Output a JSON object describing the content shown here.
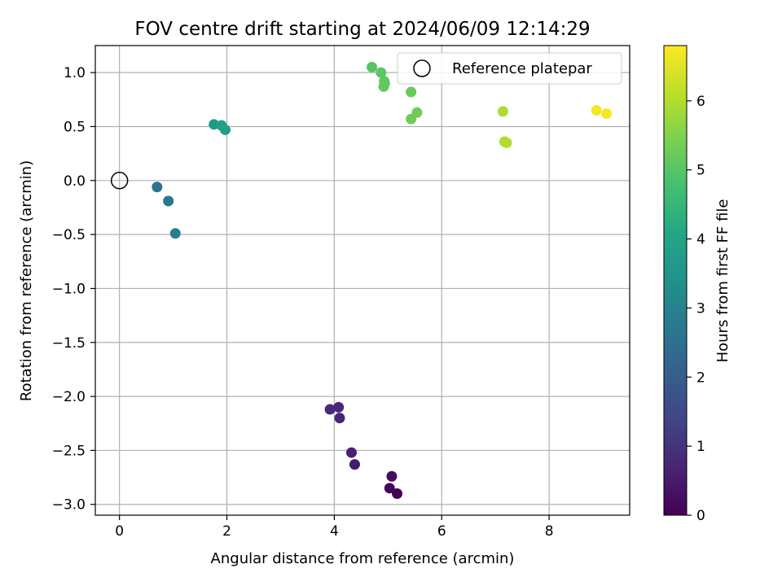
{
  "chart_data": {
    "type": "scatter",
    "title": "FOV centre drift starting at 2024/06/09 12:14:29",
    "xlabel": "Angular distance from reference (arcmin)",
    "ylabel": "Rotation from reference (arcmin)",
    "xlim": [
      -0.45,
      9.5
    ],
    "ylim": [
      -3.1,
      1.25
    ],
    "xticks": [
      0,
      2,
      4,
      6,
      8
    ],
    "yticks": [
      1.0,
      0.5,
      0.0,
      -0.5,
      -1.0,
      -1.5,
      -2.0,
      -2.5,
      -3.0
    ],
    "xtick_labels": [
      "0",
      "2",
      "4",
      "6",
      "8"
    ],
    "ytick_labels": [
      "1.0",
      "0.5",
      "0.0",
      "−0.5",
      "−1.0",
      "−1.5",
      "−2.0",
      "−2.5",
      "−3.0"
    ],
    "grid": true,
    "legend": {
      "location": "top-right",
      "label": "Reference platepar"
    },
    "reference_point": {
      "x": 0.0,
      "y": 0.0
    },
    "colorbar": {
      "label": "Hours from first FF file",
      "colormap": "viridis",
      "range": [
        0,
        6.8
      ],
      "ticks": [
        0,
        1,
        2,
        3,
        4,
        5,
        6
      ],
      "tick_labels": [
        "0",
        "1",
        "2",
        "3",
        "4",
        "5",
        "6"
      ]
    },
    "points": [
      {
        "x": 5.17,
        "y": -2.9,
        "hours": 0.0
      },
      {
        "x": 5.03,
        "y": -2.85,
        "hours": 0.1
      },
      {
        "x": 5.07,
        "y": -2.74,
        "hours": 0.2
      },
      {
        "x": 4.38,
        "y": -2.63,
        "hours": 0.5
      },
      {
        "x": 4.32,
        "y": -2.52,
        "hours": 0.6
      },
      {
        "x": 4.1,
        "y": -2.2,
        "hours": 0.7
      },
      {
        "x": 4.08,
        "y": -2.1,
        "hours": 0.75
      },
      {
        "x": 3.92,
        "y": -2.12,
        "hours": 0.8
      },
      {
        "x": 1.04,
        "y": -0.49,
        "hours": 2.9
      },
      {
        "x": 0.91,
        "y": -0.19,
        "hours": 2.7
      },
      {
        "x": 0.7,
        "y": -0.06,
        "hours": 2.6
      },
      {
        "x": 1.76,
        "y": 0.52,
        "hours": 3.7
      },
      {
        "x": 1.9,
        "y": 0.51,
        "hours": 3.8
      },
      {
        "x": 1.97,
        "y": 0.47,
        "hours": 3.8
      },
      {
        "x": 4.7,
        "y": 1.05,
        "hours": 5.0
      },
      {
        "x": 4.87,
        "y": 1.0,
        "hours": 5.05
      },
      {
        "x": 4.93,
        "y": 0.92,
        "hours": 5.1
      },
      {
        "x": 4.94,
        "y": 0.9,
        "hours": 5.1
      },
      {
        "x": 4.92,
        "y": 0.87,
        "hours": 5.15
      },
      {
        "x": 5.43,
        "y": 0.82,
        "hours": 5.2
      },
      {
        "x": 5.54,
        "y": 0.63,
        "hours": 5.3
      },
      {
        "x": 5.43,
        "y": 0.57,
        "hours": 5.3
      },
      {
        "x": 7.14,
        "y": 0.64,
        "hours": 5.95
      },
      {
        "x": 7.17,
        "y": 0.36,
        "hours": 6.0
      },
      {
        "x": 7.21,
        "y": 0.35,
        "hours": 6.0
      },
      {
        "x": 8.88,
        "y": 0.65,
        "hours": 6.7
      },
      {
        "x": 9.07,
        "y": 0.62,
        "hours": 6.75
      }
    ]
  }
}
